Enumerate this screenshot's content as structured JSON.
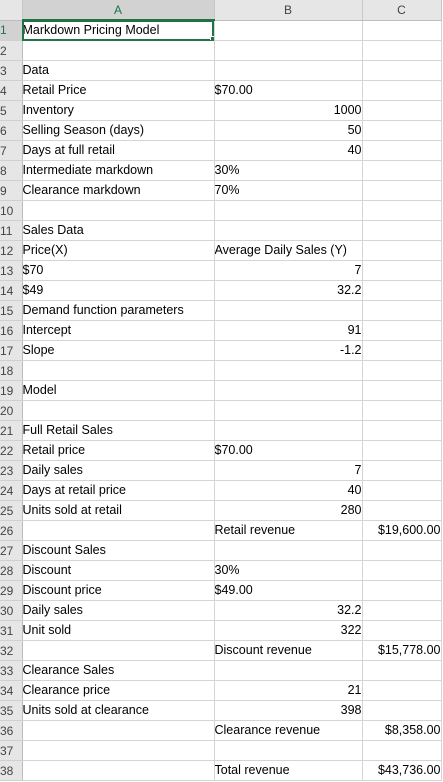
{
  "columns": [
    "A",
    "B",
    "C"
  ],
  "active_column": "A",
  "active_row": 1,
  "selected_cell": "A1",
  "rows": [
    {
      "n": "1",
      "a": "Markdown Pricing Model",
      "b": "",
      "b_align": "l",
      "c": ""
    },
    {
      "n": "2",
      "a": "",
      "b": "",
      "b_align": "l",
      "c": ""
    },
    {
      "n": "3",
      "a": "Data",
      "b": "",
      "b_align": "l",
      "c": ""
    },
    {
      "n": "4",
      "a": "Retail Price",
      "b": "$70.00",
      "b_align": "l",
      "c": ""
    },
    {
      "n": "5",
      "a": "Inventory",
      "b": "1000",
      "b_align": "r",
      "c": ""
    },
    {
      "n": "6",
      "a": "Selling Season (days)",
      "b": "50",
      "b_align": "r",
      "c": ""
    },
    {
      "n": "7",
      "a": "Days at full retail",
      "b": "40",
      "b_align": "r",
      "c": ""
    },
    {
      "n": "8",
      "a": "Intermediate markdown",
      "b": "30%",
      "b_align": "l",
      "c": ""
    },
    {
      "n": "9",
      "a": "Clearance markdown",
      "b": "70%",
      "b_align": "l",
      "c": ""
    },
    {
      "n": "10",
      "a": "",
      "b": "",
      "b_align": "l",
      "c": ""
    },
    {
      "n": "11",
      "a": "Sales Data",
      "b": "",
      "b_align": "l",
      "c": ""
    },
    {
      "n": "12",
      "a": "Price(X)",
      "b": "Average Daily Sales (Y)",
      "b_align": "l",
      "c": ""
    },
    {
      "n": "13",
      "a": "$70",
      "b": "7",
      "b_align": "r",
      "c": ""
    },
    {
      "n": "14",
      "a": "$49",
      "b": "32.2",
      "b_align": "r",
      "c": ""
    },
    {
      "n": "15",
      "a": "Demand function parameters",
      "b": "",
      "b_align": "l",
      "c": ""
    },
    {
      "n": "16",
      "a": "Intercept",
      "b": "91",
      "b_align": "r",
      "c": ""
    },
    {
      "n": "17",
      "a": "Slope",
      "b": "-1.2",
      "b_align": "r",
      "c": ""
    },
    {
      "n": "18",
      "a": "",
      "b": "",
      "b_align": "l",
      "c": ""
    },
    {
      "n": "19",
      "a": "Model",
      "b": "",
      "b_align": "l",
      "c": ""
    },
    {
      "n": "20",
      "a": "",
      "b": "",
      "b_align": "l",
      "c": ""
    },
    {
      "n": "21",
      "a": "Full Retail Sales",
      "b": "",
      "b_align": "l",
      "c": ""
    },
    {
      "n": "22",
      "a": "Retail price",
      "b": "$70.00",
      "b_align": "l",
      "c": ""
    },
    {
      "n": "23",
      "a": "Daily sales",
      "b": "7",
      "b_align": "r",
      "c": ""
    },
    {
      "n": "24",
      "a": "Days at retail price",
      "b": "40",
      "b_align": "r",
      "c": ""
    },
    {
      "n": "25",
      "a": "Units sold at retail",
      "b": "280",
      "b_align": "r",
      "c": ""
    },
    {
      "n": "26",
      "a": "",
      "b": "Retail revenue",
      "b_align": "l",
      "c": "$19,600.00"
    },
    {
      "n": "27",
      "a": "Discount Sales",
      "b": "",
      "b_align": "l",
      "c": ""
    },
    {
      "n": "28",
      "a": "Discount",
      "b": "30%",
      "b_align": "l",
      "c": ""
    },
    {
      "n": "29",
      "a": "Discount price",
      "b": "$49.00",
      "b_align": "l",
      "c": ""
    },
    {
      "n": "30",
      "a": "Daily sales",
      "b": "32.2",
      "b_align": "r",
      "c": ""
    },
    {
      "n": "31",
      "a": "Unit sold",
      "b": "322",
      "b_align": "r",
      "c": ""
    },
    {
      "n": "32",
      "a": "",
      "b": "Discount revenue",
      "b_align": "l",
      "c": "$15,778.00"
    },
    {
      "n": "33",
      "a": "Clearance Sales",
      "b": "",
      "b_align": "l",
      "c": ""
    },
    {
      "n": "34",
      "a": "Clearance price",
      "b": "21",
      "b_align": "r",
      "c": ""
    },
    {
      "n": "35",
      "a": "Units sold at clearance",
      "b": "398",
      "b_align": "r",
      "c": ""
    },
    {
      "n": "36",
      "a": "",
      "b": "Clearance revenue",
      "b_align": "l",
      "c": "$8,358.00"
    },
    {
      "n": "37",
      "a": "",
      "b": "",
      "b_align": "l",
      "c": ""
    },
    {
      "n": "38",
      "a": "",
      "b": "Total revenue",
      "b_align": "l",
      "c": "$43,736.00"
    }
  ]
}
